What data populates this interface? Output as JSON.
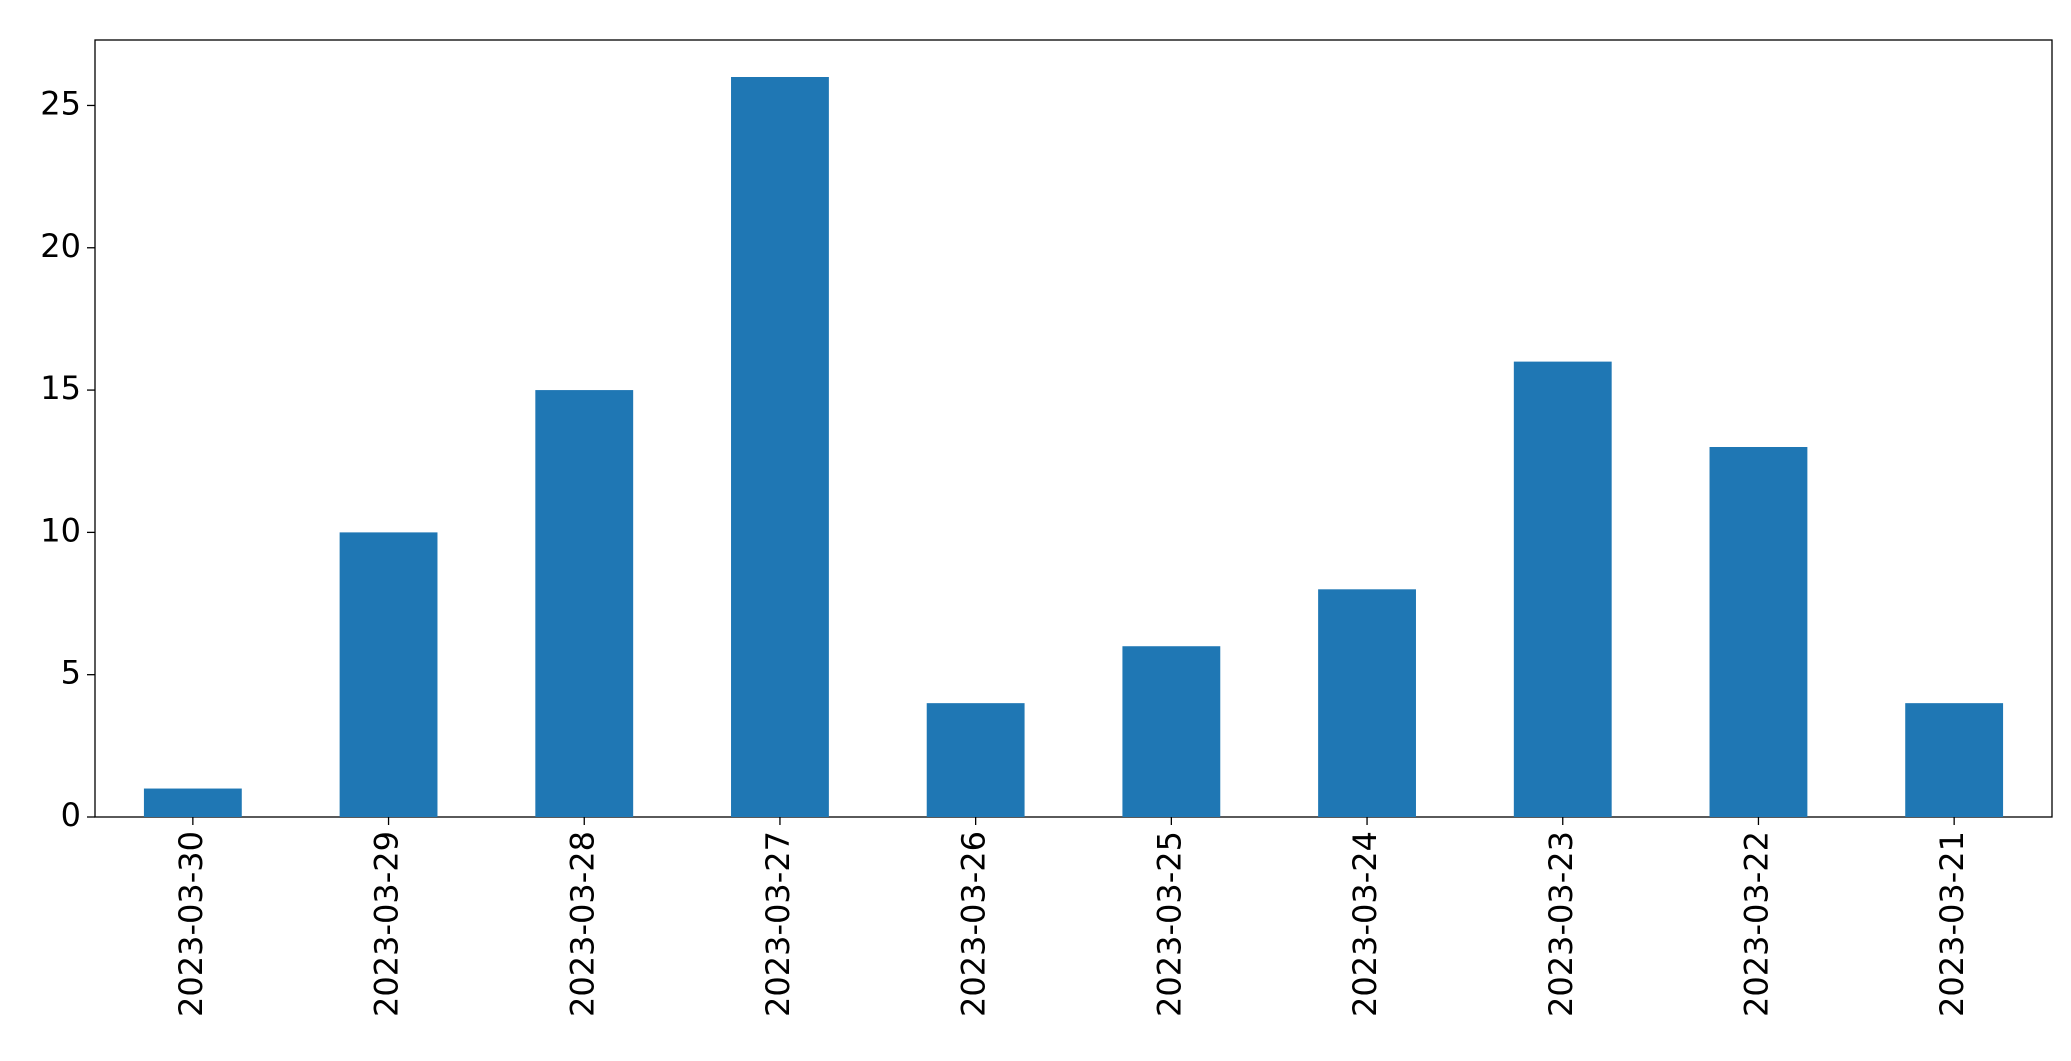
{
  "chart_data": {
    "type": "bar",
    "categories": [
      "2023-03-30",
      "2023-03-29",
      "2023-03-28",
      "2023-03-27",
      "2023-03-26",
      "2023-03-25",
      "2023-03-24",
      "2023-03-23",
      "2023-03-22",
      "2023-03-21"
    ],
    "values": [
      1,
      10,
      15,
      26,
      4,
      6,
      8,
      16,
      13,
      4
    ],
    "color": "#1f77b4",
    "ylim": [
      0,
      27.3
    ],
    "yticks": [
      0,
      5,
      10,
      15,
      20,
      25
    ],
    "grid": false
  }
}
